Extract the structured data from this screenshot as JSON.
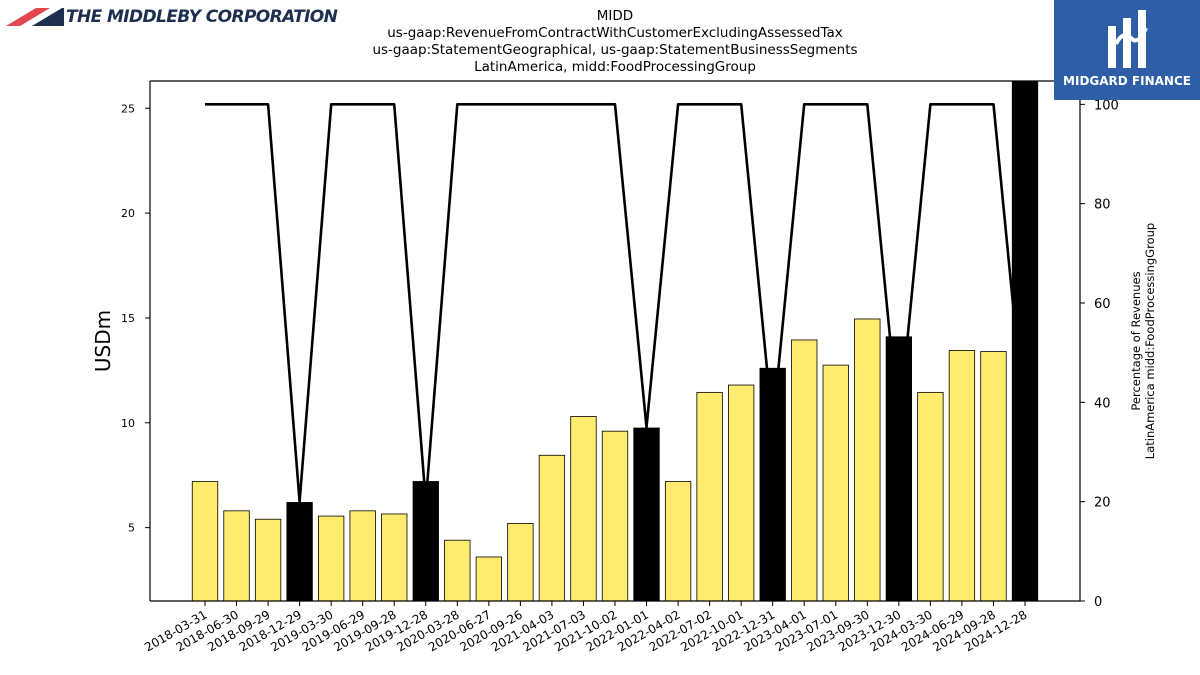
{
  "branding": {
    "left_logo_text": "THE MIDDLEBY CORPORATION",
    "right_logo_text": "MIDGARD FINANCE",
    "accent_red": "#e3474d",
    "accent_navy": "#1d2e4f",
    "right_logo_bg": "#2d5ea6"
  },
  "chart_data": {
    "type": "bar",
    "title_lines": [
      "MIDD",
      "us-gaap:RevenueFromContractWithCustomerExcludingAssessedTax",
      "us-gaap:StatementGeographical, us-gaap:StatementBusinessSegments",
      "LatinAmerica, midd:FoodProcessingGroup"
    ],
    "ylabel": "USDm",
    "y2label_lines": [
      "Percentage of Revenues",
      "LatinAmerica midd:FoodProcessingGroup"
    ],
    "ylim": [
      1.5,
      26.3
    ],
    "y_ticks": [
      5,
      10,
      15,
      20,
      25
    ],
    "y2lim": [
      0,
      104.7
    ],
    "y2_ticks": [
      0,
      20,
      40,
      60,
      80,
      100
    ],
    "categories": [
      "2018-03-31",
      "2018-06-30",
      "2018-09-29",
      "2018-12-29",
      "2019-03-30",
      "2019-06-29",
      "2019-09-28",
      "2019-12-28",
      "2020-03-28",
      "2020-06-27",
      "2020-09-26",
      "2021-04-03",
      "2021-07-03",
      "2021-10-02",
      "2022-01-01",
      "2022-04-02",
      "2022-07-02",
      "2022-10-01",
      "2022-12-31",
      "2023-04-01",
      "2023-07-01",
      "2023-09-30",
      "2023-12-30",
      "2024-03-30",
      "2024-06-29",
      "2024-09-28",
      "2024-12-28"
    ],
    "values": [
      7.2,
      5.8,
      5.4,
      6.2,
      5.55,
      5.8,
      5.65,
      7.2,
      4.4,
      3.6,
      5.2,
      8.45,
      10.3,
      9.6,
      9.75,
      7.2,
      11.45,
      11.8,
      12.6,
      13.95,
      12.75,
      14.95,
      14.1,
      11.45,
      13.45,
      13.4,
      26.3
    ],
    "bar_is_annual": [
      false,
      false,
      false,
      true,
      false,
      false,
      false,
      true,
      false,
      false,
      false,
      false,
      false,
      false,
      true,
      false,
      false,
      false,
      true,
      false,
      false,
      false,
      true,
      false,
      false,
      false,
      true
    ],
    "percentage_series": [
      100,
      100,
      100,
      20,
      100,
      100,
      100,
      20,
      100,
      100,
      100,
      100,
      100,
      100,
      35,
      100,
      100,
      100,
      35,
      100,
      100,
      100,
      35,
      100,
      100,
      100,
      35
    ],
    "colors": {
      "quarter_bar": "#ffec6e",
      "annual_bar": "#000000",
      "line": "#000000"
    }
  }
}
